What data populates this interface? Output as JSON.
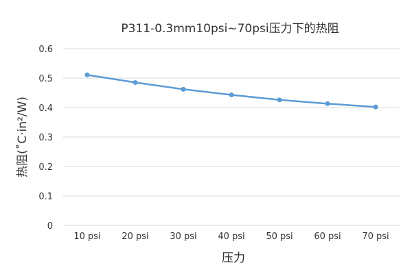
{
  "chart_data": {
    "type": "line",
    "title": "P311-0.3mm10psi~70psi压力下的热阻",
    "xlabel": "压力",
    "ylabel": "热阻(˚C·in²/W)",
    "categories": [
      "10 psi",
      "20 psi",
      "30 psi",
      "40 psi",
      "50 psi",
      "60 psi",
      "70 psi"
    ],
    "series": [
      {
        "values": [
          0.511,
          0.485,
          0.462,
          0.443,
          0.426,
          0.413,
          0.402
        ],
        "color": "#5b9bd5"
      }
    ],
    "ylim": [
      0,
      0.6
    ],
    "yticks": [
      "0",
      "0.1",
      "0.2",
      "0.3",
      "0.4",
      "0.5",
      "0.6"
    ],
    "grid": true,
    "legend": "none"
  }
}
